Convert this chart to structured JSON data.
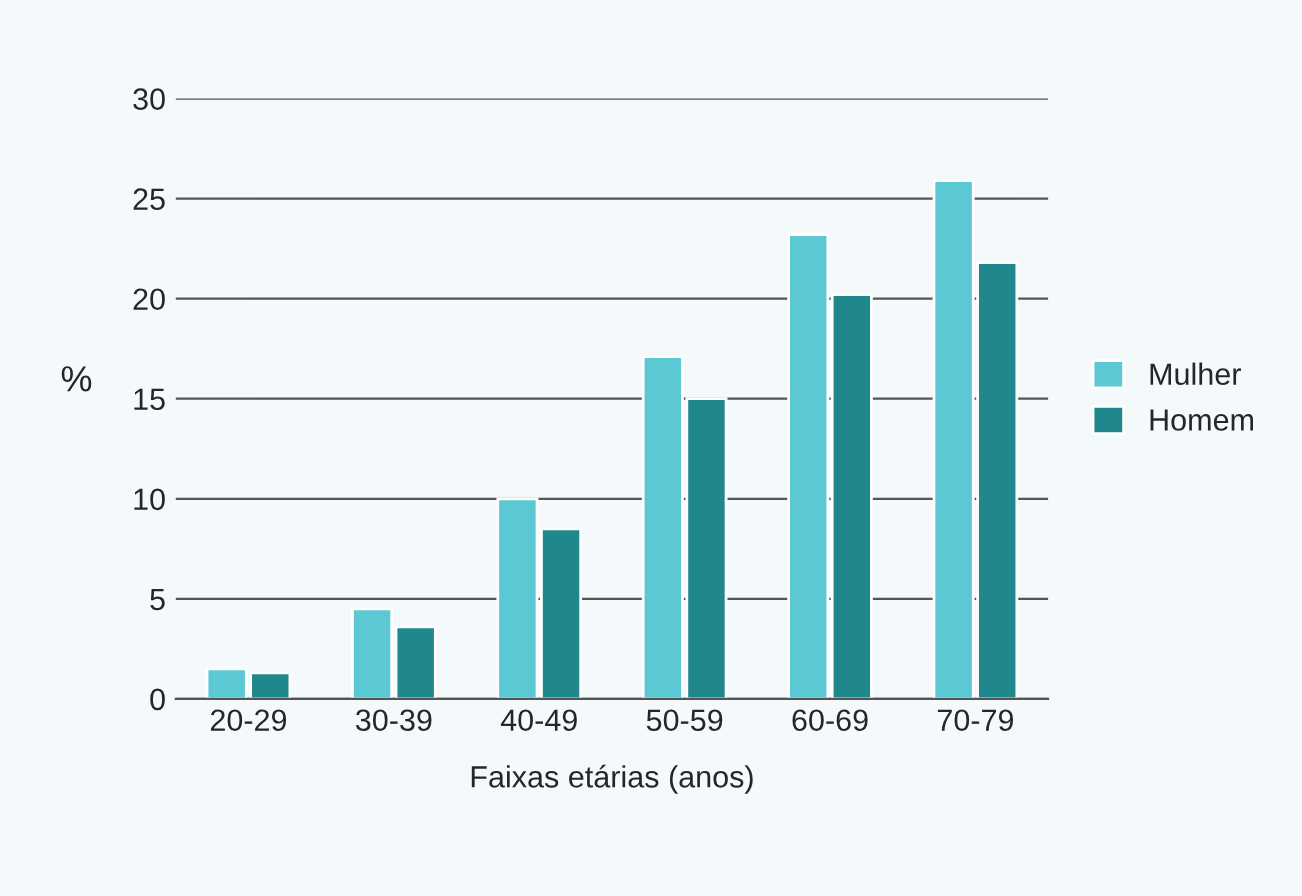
{
  "chart_data": {
    "type": "bar",
    "xlabel": "Faixas etárias (anos)",
    "ylabel": "%",
    "categories": [
      "20-29",
      "30-39",
      "40-49",
      "50-59",
      "60-69",
      "70-79"
    ],
    "series": [
      {
        "name": "Mulher",
        "color": "#5bc8d4",
        "values": [
          1.5,
          4.5,
          10,
          17.1,
          23.2,
          25.9
        ]
      },
      {
        "name": "Homem",
        "color": "#20878c",
        "values": [
          1.3,
          3.6,
          8.5,
          15,
          20.2,
          21.8
        ]
      }
    ],
    "ylim": [
      0,
      30
    ],
    "yticks": [
      0,
      5,
      10,
      15,
      20,
      25,
      30
    ],
    "grid": "y",
    "legend": "right"
  }
}
